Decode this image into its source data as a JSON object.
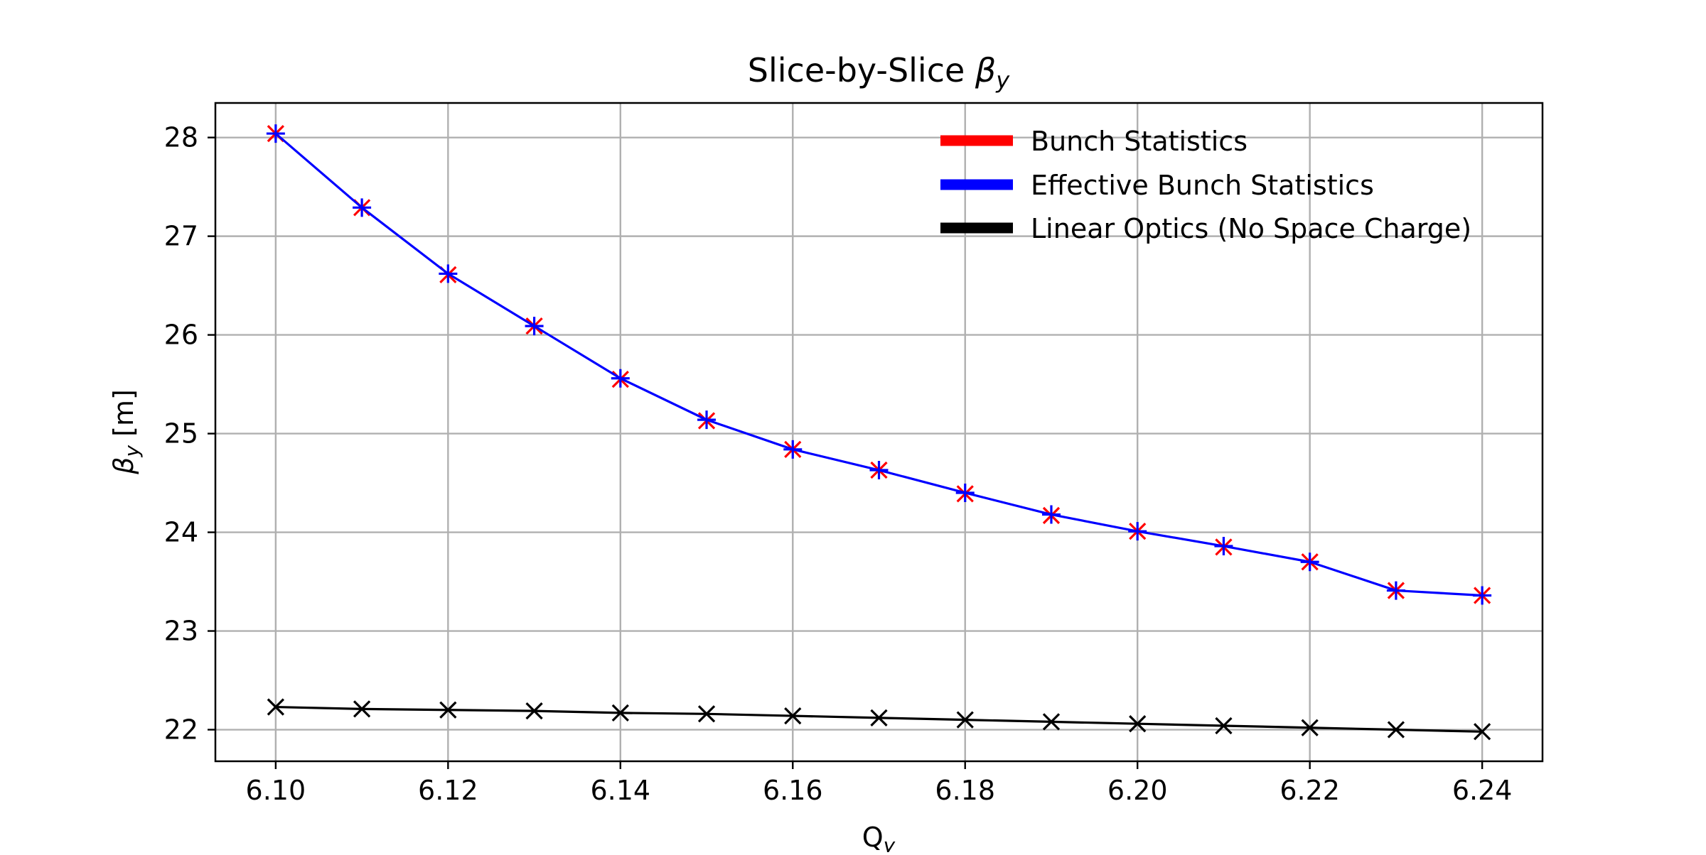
{
  "chart_data": {
    "type": "line",
    "title_prefix": "Slice-by-Slice ",
    "title_symbol": "β",
    "title_subscript": "y",
    "xlabel_main": "Q",
    "xlabel_subscript": "y",
    "ylabel_symbol": "β",
    "ylabel_subscript": "y",
    "ylabel_unit": " [m]",
    "x": [
      6.1,
      6.11,
      6.12,
      6.13,
      6.14,
      6.15,
      6.16,
      6.17,
      6.18,
      6.19,
      6.2,
      6.21,
      6.22,
      6.23,
      6.24
    ],
    "xlim": [
      6.093,
      6.247
    ],
    "ylim": [
      21.68,
      28.35
    ],
    "x_ticks": [
      "6.10",
      "6.12",
      "6.14",
      "6.16",
      "6.18",
      "6.20",
      "6.22",
      "6.24"
    ],
    "y_ticks": [
      "22",
      "23",
      "24",
      "25",
      "26",
      "27",
      "28"
    ],
    "grid": true,
    "legend_position": "top-right",
    "series": [
      {
        "name": "Bunch Statistics",
        "color": "#ff0000",
        "marker": "x",
        "line": false,
        "values": [
          28.04,
          27.29,
          26.61,
          26.09,
          25.55,
          25.13,
          24.84,
          24.63,
          24.39,
          24.17,
          24.01,
          23.85,
          23.7,
          23.41,
          23.36
        ]
      },
      {
        "name": "Effective Bunch Statistics",
        "color": "#0000ff",
        "marker": "+",
        "line": true,
        "values": [
          28.04,
          27.29,
          26.62,
          26.09,
          25.56,
          25.14,
          24.84,
          24.63,
          24.4,
          24.18,
          24.01,
          23.86,
          23.7,
          23.41,
          23.36
        ]
      },
      {
        "name": "Linear Optics (No Space Charge)",
        "color": "#000000",
        "marker": "x",
        "line": true,
        "values": [
          22.23,
          22.21,
          22.2,
          22.19,
          22.17,
          22.16,
          22.14,
          22.12,
          22.1,
          22.08,
          22.06,
          22.04,
          22.02,
          22.0,
          21.98
        ]
      }
    ]
  }
}
